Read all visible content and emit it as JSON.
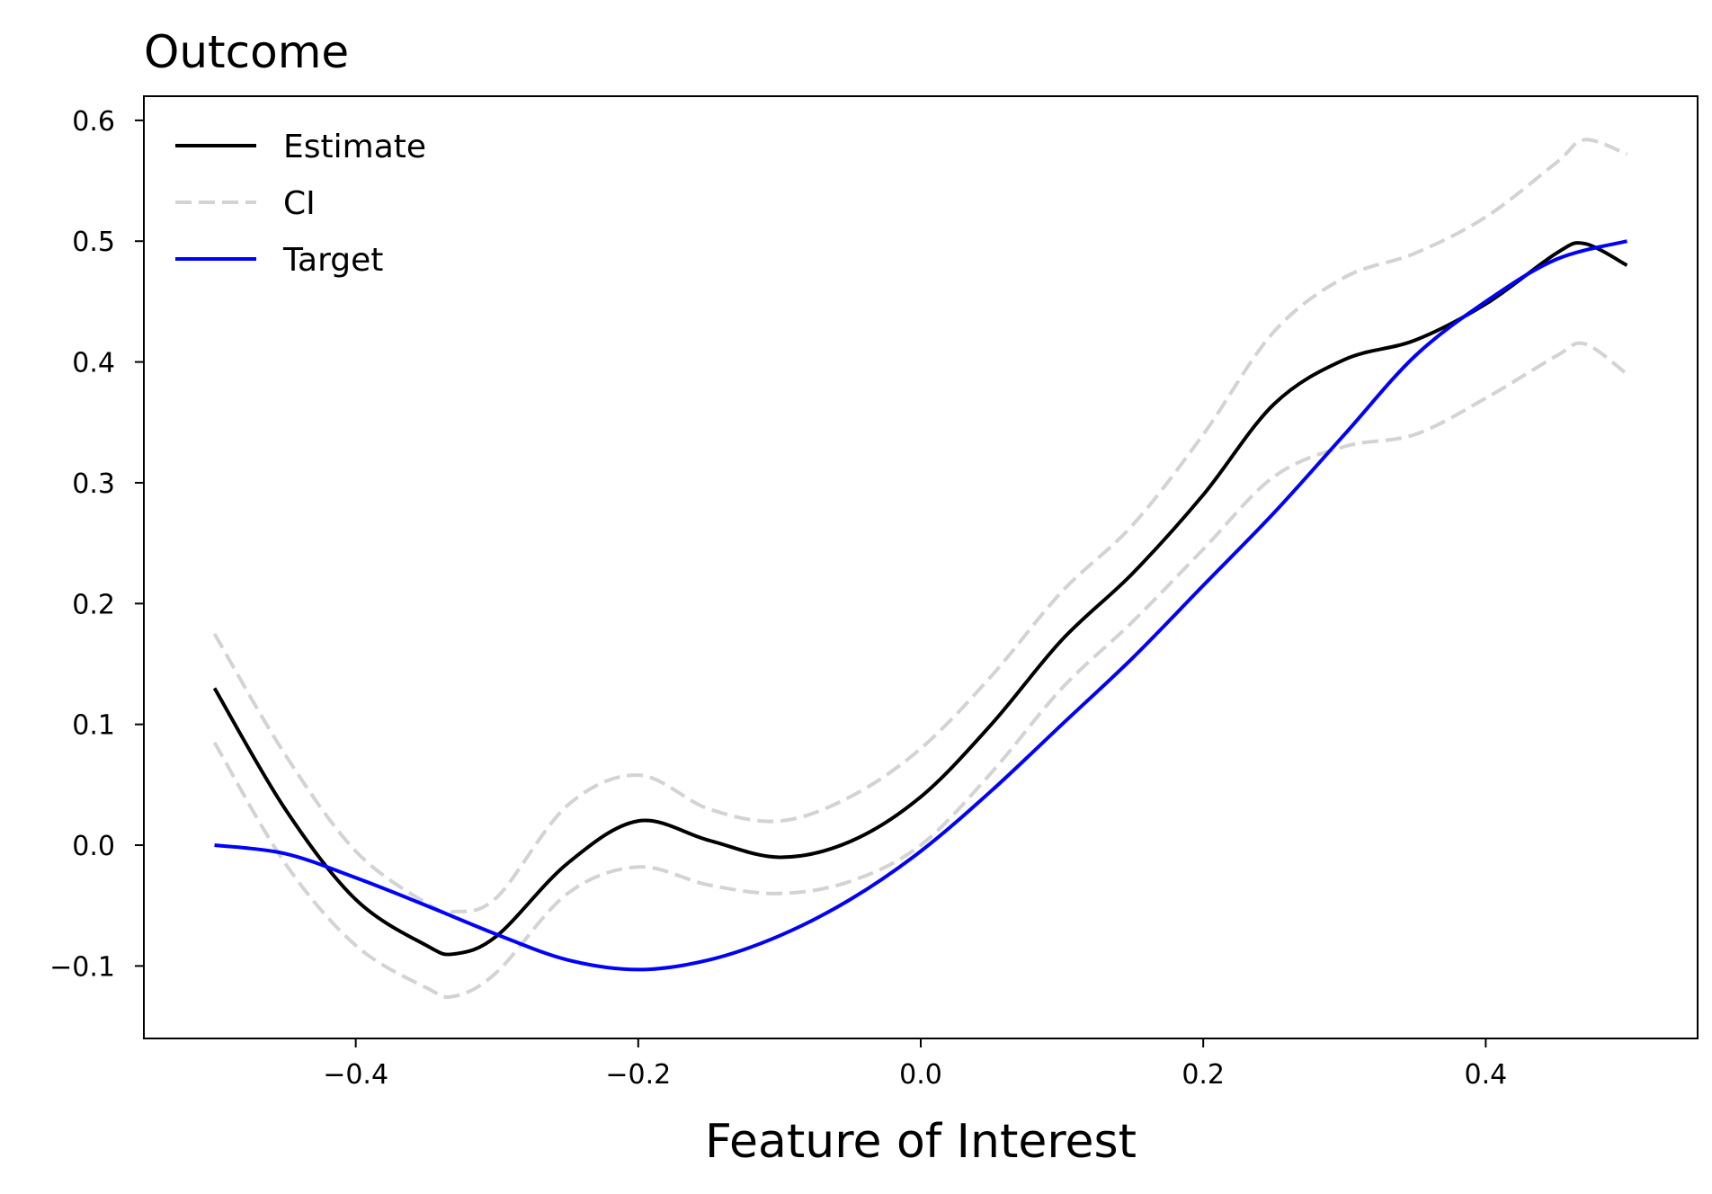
{
  "chart_data": {
    "type": "line",
    "title": "Outcome",
    "xlabel": "Feature of Interest",
    "ylabel": "",
    "xlim": [
      -0.55,
      0.55
    ],
    "ylim": [
      -0.16,
      0.62
    ],
    "xticks": [
      -0.4,
      -0.2,
      0.0,
      0.2,
      0.4
    ],
    "xtick_labels": [
      "−0.4",
      "−0.2",
      "0.0",
      "0.2",
      "0.4"
    ],
    "yticks": [
      -0.1,
      0.0,
      0.1,
      0.2,
      0.3,
      0.4,
      0.5,
      0.6
    ],
    "ytick_labels": [
      "−0.1",
      "0.0",
      "0.1",
      "0.2",
      "0.3",
      "0.4",
      "0.5",
      "0.6"
    ],
    "grid": false,
    "legend_position": "top-left",
    "series": [
      {
        "name": "Estimate",
        "color": "#000000",
        "style": "solid",
        "x": [
          -0.5,
          -0.45,
          -0.4,
          -0.35,
          -0.33,
          -0.3,
          -0.25,
          -0.2,
          -0.15,
          -0.1,
          -0.05,
          0.0,
          0.05,
          0.1,
          0.15,
          0.2,
          0.25,
          0.3,
          0.35,
          0.4,
          0.45,
          0.47,
          0.5
        ],
        "y": [
          0.13,
          0.03,
          -0.045,
          -0.083,
          -0.09,
          -0.075,
          -0.015,
          0.02,
          0.004,
          -0.01,
          0.003,
          0.04,
          0.1,
          0.17,
          0.225,
          0.29,
          0.365,
          0.402,
          0.418,
          0.448,
          0.49,
          0.498,
          0.48
        ]
      },
      {
        "name": "CI",
        "color": "#d3d3d3",
        "style": "dashed",
        "x": [
          -0.5,
          -0.45,
          -0.4,
          -0.35,
          -0.33,
          -0.3,
          -0.25,
          -0.2,
          -0.15,
          -0.1,
          -0.05,
          0.0,
          0.05,
          0.1,
          0.15,
          0.2,
          0.25,
          0.3,
          0.35,
          0.4,
          0.45,
          0.47,
          0.5
        ],
        "y": [
          0.175,
          0.075,
          -0.005,
          -0.048,
          -0.055,
          -0.043,
          0.033,
          0.058,
          0.03,
          0.02,
          0.04,
          0.08,
          0.14,
          0.21,
          0.265,
          0.34,
          0.425,
          0.47,
          0.49,
          0.52,
          0.565,
          0.584,
          0.572
        ]
      },
      {
        "name": "CI lower",
        "color": "#d3d3d3",
        "style": "dashed",
        "x": [
          -0.5,
          -0.45,
          -0.4,
          -0.35,
          -0.33,
          -0.3,
          -0.25,
          -0.2,
          -0.15,
          -0.1,
          -0.05,
          0.0,
          0.05,
          0.1,
          0.15,
          0.2,
          0.25,
          0.3,
          0.35,
          0.4,
          0.45,
          0.47,
          0.5
        ],
        "y": [
          0.085,
          -0.015,
          -0.083,
          -0.118,
          -0.125,
          -0.105,
          -0.04,
          -0.018,
          -0.033,
          -0.04,
          -0.03,
          0.0,
          0.06,
          0.13,
          0.185,
          0.245,
          0.305,
          0.33,
          0.34,
          0.37,
          0.405,
          0.415,
          0.39
        ]
      },
      {
        "name": "Target",
        "color": "#0000ff",
        "style": "solid",
        "x": [
          -0.5,
          -0.45,
          -0.4,
          -0.35,
          -0.3,
          -0.25,
          -0.2,
          -0.15,
          -0.1,
          -0.05,
          0.0,
          0.05,
          0.1,
          0.15,
          0.2,
          0.25,
          0.3,
          0.35,
          0.4,
          0.45,
          0.5
        ],
        "y": [
          0.0,
          -0.007,
          -0.027,
          -0.05,
          -0.074,
          -0.095,
          -0.103,
          -0.095,
          -0.075,
          -0.045,
          -0.005,
          0.045,
          0.1,
          0.155,
          0.215,
          0.275,
          0.34,
          0.405,
          0.45,
          0.485,
          0.5
        ]
      }
    ],
    "legend": [
      {
        "label": "Estimate",
        "color": "#000000",
        "style": "solid"
      },
      {
        "label": "CI",
        "color": "#d3d3d3",
        "style": "dashed"
      },
      {
        "label": "Target",
        "color": "#0000ff",
        "style": "solid"
      }
    ]
  }
}
